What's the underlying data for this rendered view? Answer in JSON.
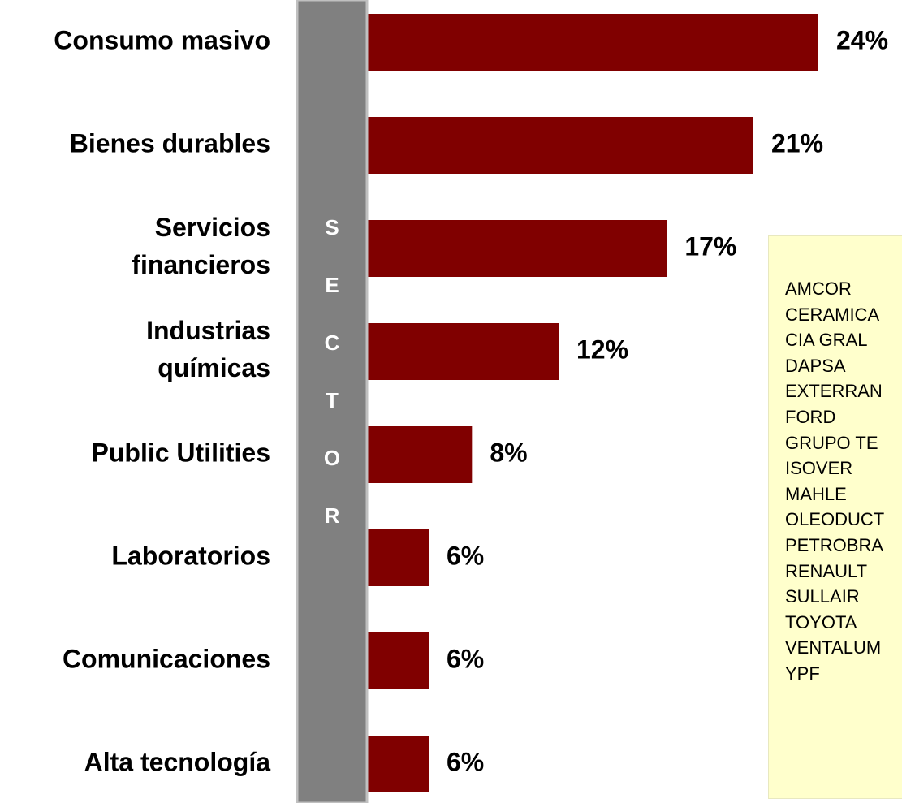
{
  "chart_data": {
    "type": "bar",
    "orientation": "horizontal",
    "categories": [
      "Consumo masivo",
      "Bienes durables",
      "Servicios\nfinancieros",
      "Industrias\nquímicas",
      "Public Utilities",
      "Laboratorios",
      "Comunicaciones",
      "Alta tecnología"
    ],
    "values": [
      24,
      21,
      17,
      12,
      8,
      6,
      6,
      6
    ],
    "value_labels": [
      "24%",
      "21%",
      "17%",
      "12%",
      "8%",
      "6%",
      "6%",
      "6%"
    ],
    "color": "#800000",
    "axis_label": "SECTOR",
    "annotation_list": [
      "AMCOR",
      "CERAMICA",
      "CIA GRAL",
      "DAPSA",
      "EXTERRAN",
      "FORD",
      "GRUPO TE",
      "ISOVER",
      "MAHLE",
      "OLEODUCT",
      "PETROBRA",
      "RENAULT",
      "SULLAIR",
      "TOYOTA",
      "VENTALUM",
      "YPF"
    ]
  }
}
